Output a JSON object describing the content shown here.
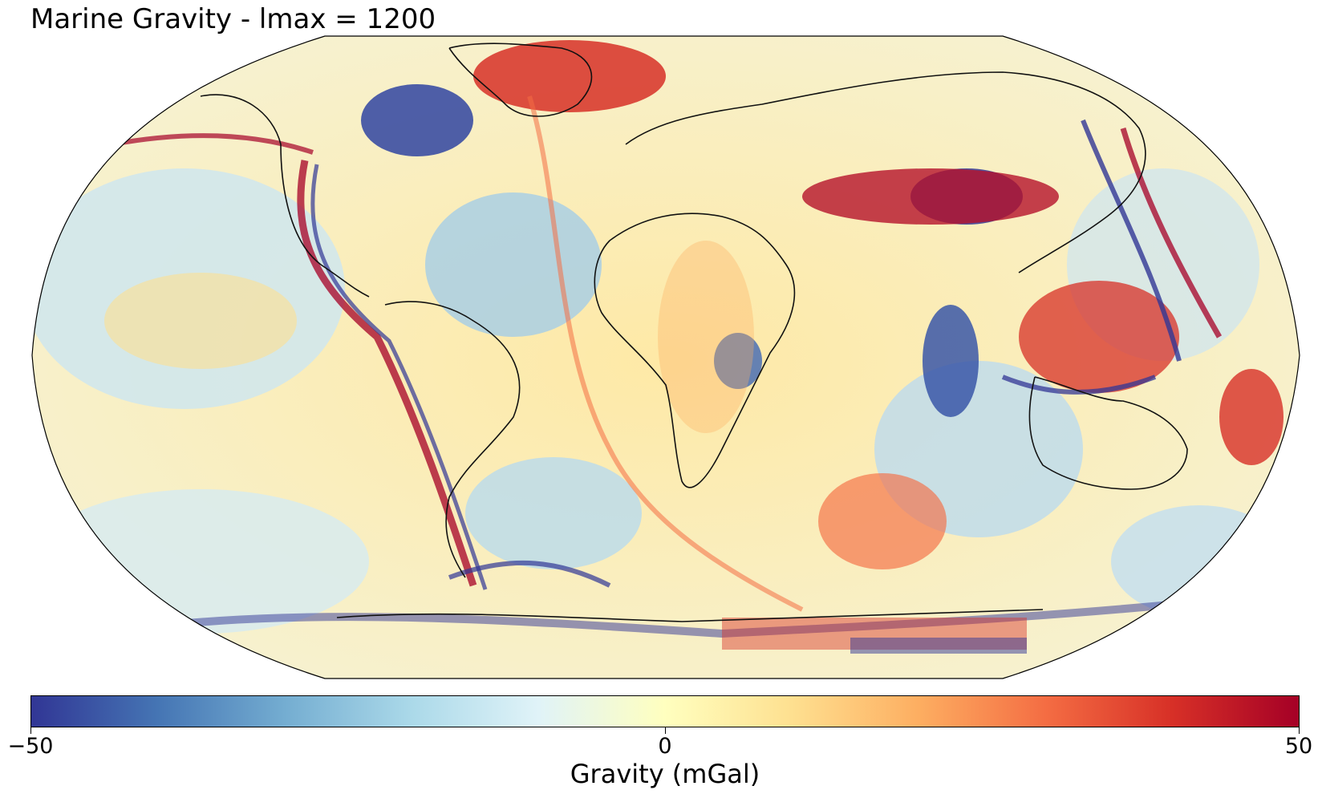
{
  "title": "Marine Gravity - lmax = 1200",
  "colorbar": {
    "label": "Gravity (mGal)",
    "min": -50,
    "max": 50,
    "ticks": [
      "−50",
      "0",
      "50"
    ],
    "colormap": "RdYlBu_r",
    "stops": [
      "#313695",
      "#4575b4",
      "#74add1",
      "#abd9e9",
      "#e0f3f8",
      "#ffffbf",
      "#fee090",
      "#fdae61",
      "#f46d43",
      "#d73027",
      "#a50026"
    ]
  },
  "map": {
    "projection": "Robinson",
    "field": "gravity anomaly",
    "coastlines": true
  }
}
